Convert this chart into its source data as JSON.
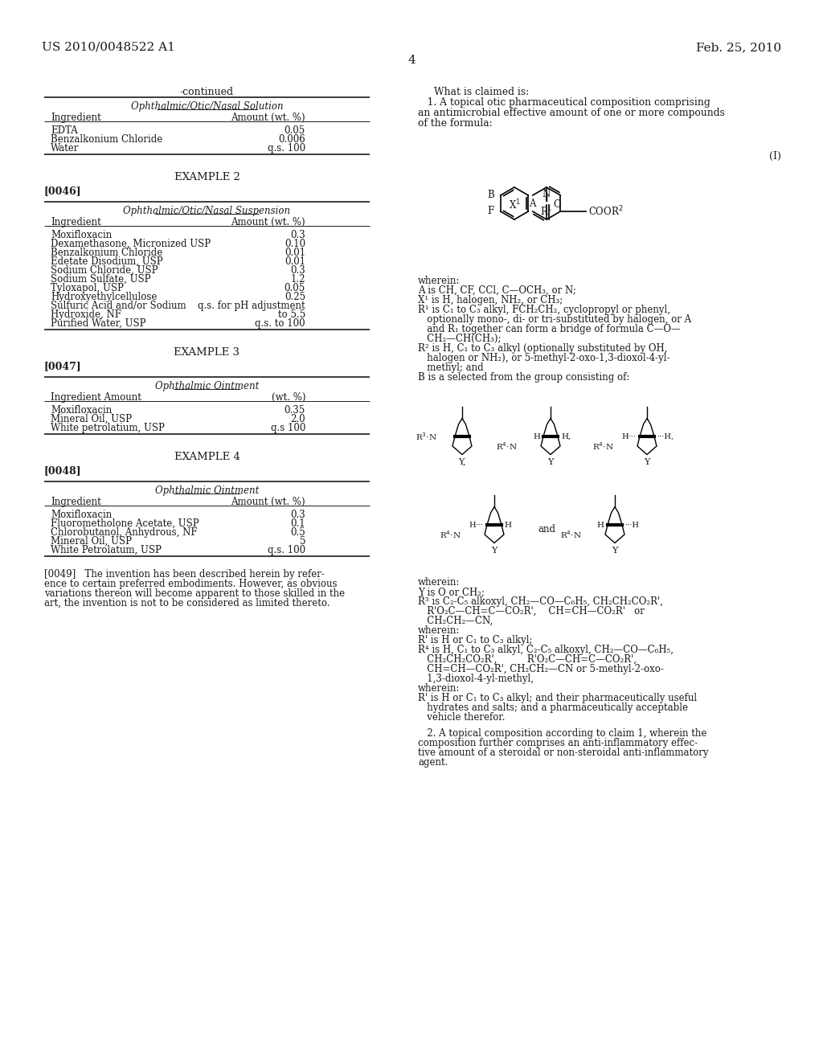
{
  "bg_color": "#ffffff",
  "header_left": "US 2010/0048522 A1",
  "header_right": "Feb. 25, 2010",
  "page_number": "4",
  "left_col": {
    "continued_label": "-continued",
    "table1_title": "Ophthalmic/Otic/Nasal Solution",
    "table1_col1": "Ingredient",
    "table1_col2": "Amount (wt. %)",
    "table1_rows": [
      [
        "EDTA",
        "0.05"
      ],
      [
        "Benzalkonium Chloride",
        "0.006"
      ],
      [
        "Water",
        "q.s. 100"
      ]
    ],
    "example2_title": "EXAMPLE 2",
    "example2_ref": "[0046]",
    "table2_title": "Ophthalmic/Otic/Nasal Suspension",
    "table2_col1": "Ingredient",
    "table2_col2": "Amount (wt. %)",
    "table2_rows": [
      [
        "Moxifloxacin",
        "0.3"
      ],
      [
        "Dexamethasone, Micronized USP",
        "0.10"
      ],
      [
        "Benzalkonium Chloride",
        "0.01"
      ],
      [
        "Edetate Disodium, USP",
        "0.01"
      ],
      [
        "Sodium Chloride, USP",
        "0.3"
      ],
      [
        "Sodium Sulfate, USP",
        "1.2"
      ],
      [
        "Tyloxapol, USP",
        "0.05"
      ],
      [
        "Hydroxyethylcellulose",
        "0.25"
      ],
      [
        "Sulfuric Acid and/or Sodium",
        "q.s. for pH adjustment"
      ],
      [
        "Hydroxide, NF",
        "to 5.5"
      ],
      [
        "Purified Water, USP",
        "q.s. to 100"
      ]
    ],
    "example3_title": "EXAMPLE 3",
    "example3_ref": "[0047]",
    "table3_title": "Ophthalmic Ointment",
    "table3_col1": "Ingredient Amount",
    "table3_col2": "(wt. %)",
    "table3_rows": [
      [
        "Moxifloxacin",
        "0.35"
      ],
      [
        "Mineral Oil, USP",
        "2.0"
      ],
      [
        "White petrolatium, USP",
        "q.s 100"
      ]
    ],
    "example4_title": "EXAMPLE 4",
    "example4_ref": "[0048]",
    "table4_title": "Ophthalmic Ointment",
    "table4_col1": "Ingredient",
    "table4_col2": "Amount (wt. %)",
    "table4_rows": [
      [
        "Moxifloxacin",
        "0.3"
      ],
      [
        "Fluorometholone Acetate, USP",
        "0.1"
      ],
      [
        "Chlorobutanol, Anhydrous, NF",
        "0.5"
      ],
      [
        "Mineral Oil, USP",
        "5"
      ],
      [
        "White Petrolatum, USP",
        "q.s. 100"
      ]
    ],
    "para0049_lines": [
      "[0049]   The invention has been described herein by refer-",
      "ence to certain preferred embodiments. However, as obvious",
      "variations thereon will become apparent to those skilled in the",
      "art, the invention is not to be considered as limited thereto."
    ]
  },
  "right_col": {
    "claims_intro": "What is claimed is:",
    "claim1_lines": [
      "   1. A topical otic pharmaceutical composition comprising",
      "an antimicrobial effective amount of one or more compounds",
      "of the formula:"
    ],
    "formula_label": "(I)",
    "wherein_lines1": [
      "wherein:",
      "A is CH, CF, CCl, C—OCH₃, or N;",
      "X¹ is H, halogen, NH₂, or CH₃;",
      "R¹ is C₁ to C₃ alkyl, FCH₂CH₂, cyclopropyl or phenyl,",
      "   optionally mono-, di- or tri-substituted by halogen, or A",
      "   and R₁ together can form a bridge of formula C—O—",
      "   CH₂—CH(CH₃);",
      "R² is H, C₁ to C₃ alkyl (optionally substituted by OH,",
      "   halogen or NH₂), or 5-methyl-2-oxo-1,3-dioxol-4-yl-",
      "   methyl; and",
      "B is a selected from the group consisting of:"
    ],
    "wherein_lines2": [
      "wherein:",
      "Y is O or CH₂;",
      "R³ is C₂-C₅ alkoxyl, CH₂—CO—C₆H₅, CH₂CH₂CO₂R',",
      "   R'O₂C—CH=C—CO₂R',    CH=CH—CO₂R'   or",
      "   CH₂CH₂—CN,",
      "wherein:",
      "R' is H or C₁ to C₃ alkyl;",
      "R⁴ is H, C₁ to C₃ alkyl, C₂-C₅ alkoxyl, CH₂—CO—C₆H₅,",
      "   CH₂CH₂CO₂R',          R'O₂C—CH=C—CO₂R',",
      "   CH=CH—CO₂R', CH₂CH₂—CN or 5-methyl-2-oxo-",
      "   1,3-dioxol-4-yl-methyl,",
      "wherein:",
      "R' is H or C₁ to C₃ alkyl; and their pharmaceutically useful",
      "   hydrates and salts; and a pharmaceutically acceptable",
      "   vehicle therefor."
    ],
    "claim2_lines": [
      "   2. A topical composition according to claim 1, wherein the",
      "composition further comprises an anti-inflammatory effec-",
      "tive amount of a steroidal or non-steroidal anti-inflammatory",
      "agent."
    ]
  }
}
